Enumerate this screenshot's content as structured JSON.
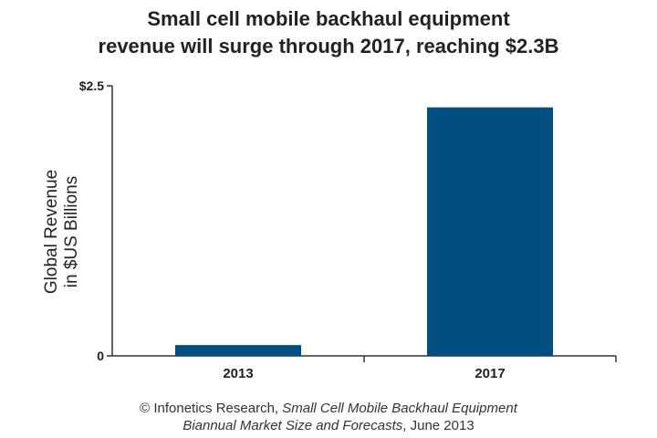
{
  "chart_data": {
    "type": "bar",
    "title_lines": [
      "Small cell mobile backhaul equipment",
      "revenue will surge through 2017, reaching $2.3B"
    ],
    "categories": [
      "2013",
      "2017"
    ],
    "values": [
      0.1,
      2.3
    ],
    "ylim": [
      0,
      2.5
    ],
    "ytick_values": [
      0,
      2.5
    ],
    "ytick_labels": [
      "0",
      "$2.5"
    ],
    "ylabel_lines": [
      "Global Revenue",
      "in $US Billions"
    ],
    "xlabel": "",
    "grid": false,
    "bar_color": "#004f80"
  },
  "footer": {
    "line1_prefix": "© Infonetics Research, ",
    "line1_italic": "Small Cell Mobile Backhaul Equipment",
    "line2_italic": "Biannual Market Size and Forecasts",
    "line2_suffix": ", June 2013"
  }
}
